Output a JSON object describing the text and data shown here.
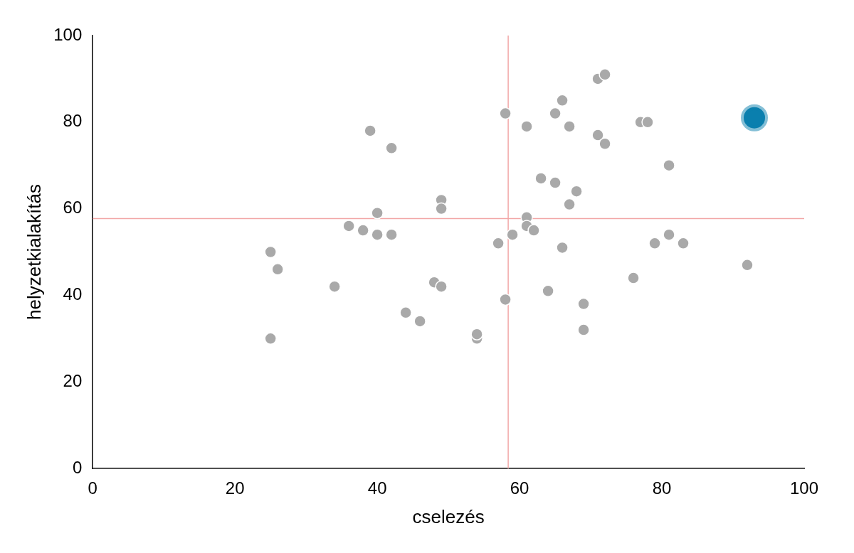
{
  "chart_data": {
    "type": "scatter",
    "xlabel": "cselezés",
    "ylabel": "helyzetkialakítás",
    "xlim": [
      0,
      100
    ],
    "ylim": [
      0,
      100
    ],
    "xticks": [
      0,
      20,
      40,
      60,
      80,
      100
    ],
    "yticks": [
      0,
      20,
      40,
      60,
      80,
      100
    ],
    "grid": false,
    "legend": false,
    "marker": "circle",
    "series": [
      {
        "color": "#a9a9a9",
        "x": [
          25,
          26,
          25,
          34,
          36,
          38,
          39,
          40,
          40,
          42,
          42,
          44,
          46,
          48,
          49,
          49,
          49,
          54,
          54,
          57,
          58,
          58,
          59,
          61,
          61,
          61,
          62,
          63,
          64,
          65,
          65,
          66,
          66,
          67,
          67,
          68,
          69,
          69,
          71,
          72,
          71,
          72,
          76,
          77,
          78,
          79,
          81,
          81,
          83,
          92
        ],
        "values": [
          50,
          46,
          30,
          42,
          56,
          55,
          78,
          59,
          54,
          54,
          74,
          36,
          34,
          43,
          42,
          62,
          60,
          30,
          31,
          52,
          82,
          39,
          54,
          79,
          58,
          56,
          55,
          67,
          41,
          82,
          66,
          85,
          51,
          79,
          61,
          64,
          38,
          32,
          90,
          91,
          77,
          75,
          44,
          80,
          80,
          52,
          70,
          54,
          52,
          47
        ]
      },
      {
        "color": "#0a7fae",
        "x": [
          93
        ],
        "values": [
          81
        ]
      }
    ],
    "ref_lines": [
      {
        "axis": "x",
        "value": 58.4,
        "color": "#f2a7a7"
      },
      {
        "axis": "y",
        "value": 57.7,
        "color": "#f2a7a7"
      }
    ]
  }
}
